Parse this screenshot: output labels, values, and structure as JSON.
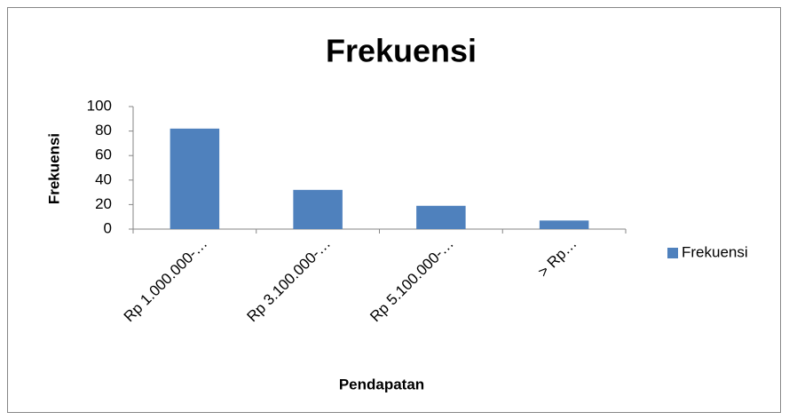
{
  "chart_data": {
    "type": "bar",
    "title": "Frekuensi",
    "x_label": "Pendapatan",
    "y_label": "Frekuensi",
    "categories": [
      "Rp 1.000.000-…",
      "Rp 3.100.000-…",
      "Rp 5.100.000-…",
      "> Rp…"
    ],
    "series": [
      {
        "name": "Frekuensi",
        "color": "#4f81bd",
        "values": [
          82,
          32,
          19,
          7
        ]
      }
    ],
    "ylim": [
      0,
      100
    ],
    "yticks": [
      0,
      20,
      40,
      60,
      80,
      100
    ],
    "grid": false,
    "legend": "right"
  }
}
